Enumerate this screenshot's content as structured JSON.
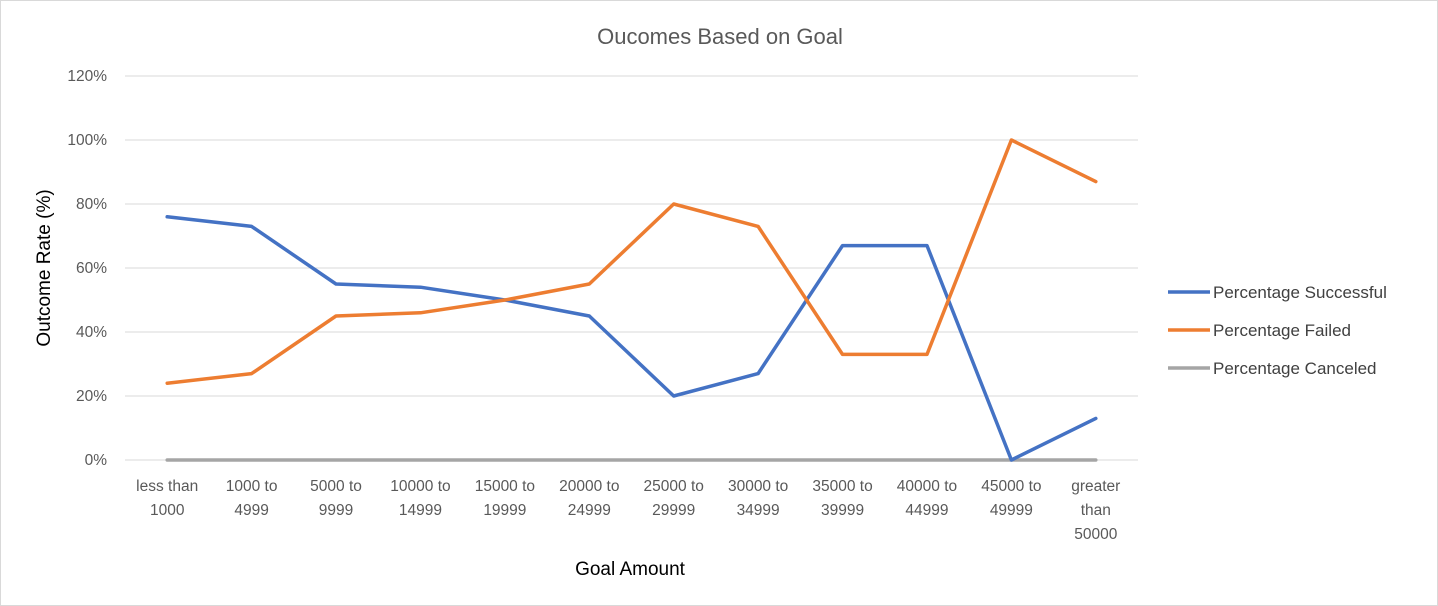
{
  "chart_data": {
    "type": "line",
    "title": "Oucomes Based on Goal",
    "xlabel": "Goal Amount",
    "ylabel": "Outcome Rate (%)",
    "ylim": [
      0,
      1.2
    ],
    "y_ticks": [
      0,
      0.2,
      0.4,
      0.6,
      0.8,
      1.0,
      1.2
    ],
    "y_tick_labels": [
      "0%",
      "20%",
      "40%",
      "60%",
      "80%",
      "100%",
      "120%"
    ],
    "grid": true,
    "legend_position": "right",
    "categories": [
      "less than 1000",
      "1000 to 4999",
      "5000 to 9999",
      "10000 to 14999",
      "15000 to 19999",
      "20000 to 24999",
      "25000 to 29999",
      "30000 to 34999",
      "35000 to 39999",
      "40000 to 44999",
      "45000 to 49999",
      "greater than 50000"
    ],
    "series": [
      {
        "name": "Percentage Successful",
        "color": "#4472C4",
        "values": [
          0.76,
          0.73,
          0.55,
          0.54,
          0.5,
          0.45,
          0.2,
          0.27,
          0.67,
          0.67,
          0.0,
          0.13
        ]
      },
      {
        "name": "Percentage Failed",
        "color": "#ED7D31",
        "values": [
          0.24,
          0.27,
          0.45,
          0.46,
          0.5,
          0.55,
          0.8,
          0.73,
          0.33,
          0.33,
          1.0,
          0.87
        ]
      },
      {
        "name": "Percentage Canceled",
        "color": "#A5A5A5",
        "values": [
          0,
          0,
          0,
          0,
          0,
          0,
          0,
          0,
          0,
          0,
          0,
          0
        ]
      }
    ]
  }
}
